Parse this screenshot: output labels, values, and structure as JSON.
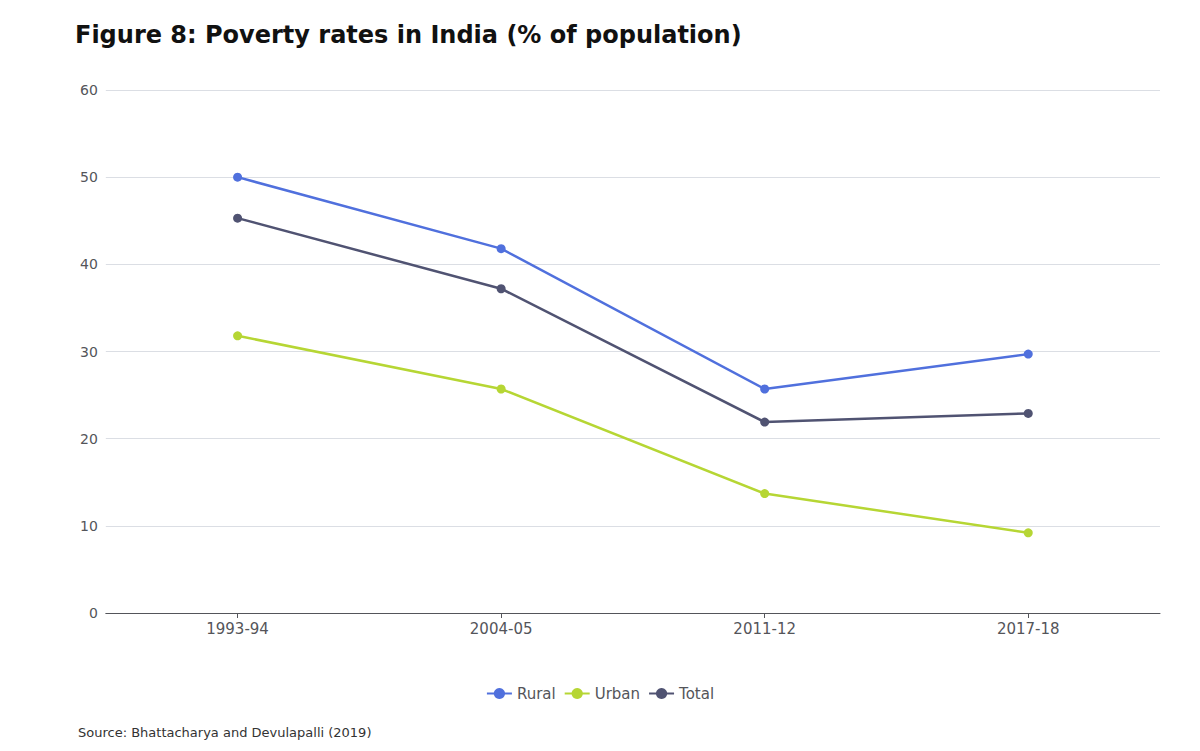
{
  "chart_data": {
    "type": "line",
    "title": "Figure 8: Poverty rates in India (% of population)",
    "categories": [
      "1993-94",
      "2004-05",
      "2011-12",
      "2017-18"
    ],
    "series": [
      {
        "name": "Rural",
        "values": [
          50.0,
          41.8,
          25.7,
          29.7
        ]
      },
      {
        "name": "Urban",
        "values": [
          31.8,
          25.7,
          13.7,
          9.2
        ]
      },
      {
        "name": "Total",
        "values": [
          45.3,
          37.2,
          21.9,
          22.9
        ]
      }
    ],
    "ylim": [
      0,
      60
    ],
    "yticks": [
      0,
      10,
      20,
      30,
      40,
      50,
      60
    ],
    "grid": true,
    "legend": "bottom",
    "marker": "circle",
    "annotations": [
      "Source: Bhattacharya and Devulapalli (2019)"
    ]
  }
}
